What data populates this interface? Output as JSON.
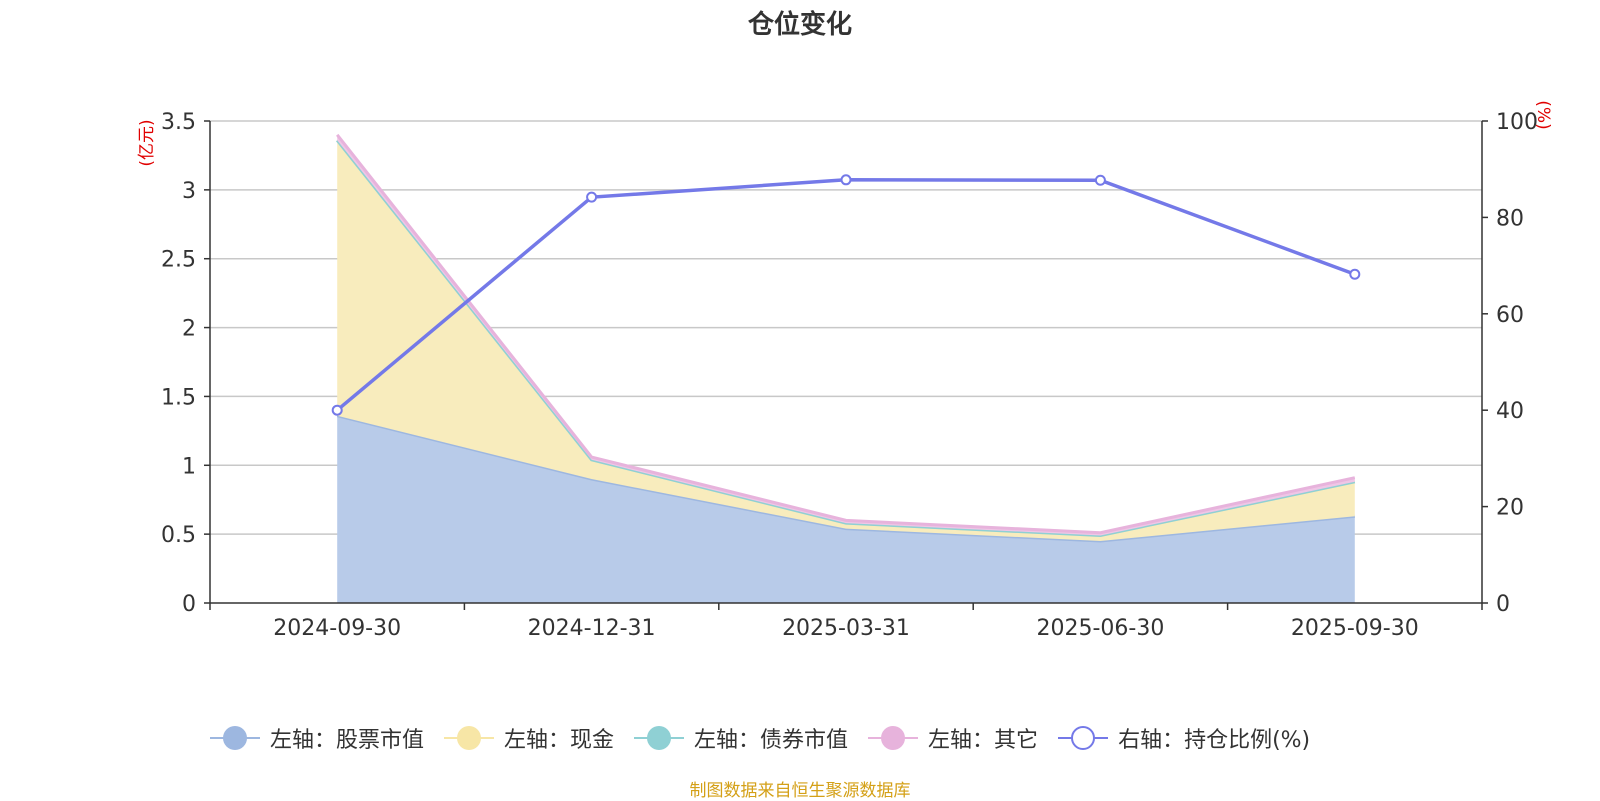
{
  "title": "仓位变化",
  "source_note": "制图数据来自恒生聚源数据库",
  "chart_data": {
    "type": "area",
    "categories": [
      "2024-09-30",
      "2024-12-31",
      "2025-03-31",
      "2025-06-30",
      "2025-09-30"
    ],
    "left_axis": {
      "unit_label": "(亿元)",
      "ylim": [
        0,
        3.5
      ],
      "ticks": [
        "0",
        "0.5",
        "1",
        "1.5",
        "2",
        "2.5",
        "3",
        "3.5"
      ]
    },
    "right_axis": {
      "unit_label": "(%)",
      "ylim": [
        0,
        100
      ],
      "ticks": [
        "0",
        "20",
        "40",
        "60",
        "80",
        "100"
      ]
    },
    "grid": true,
    "legend_position": "bottom",
    "series": [
      {
        "name": "左轴：股票市值",
        "axis": "left",
        "kind": "stacked-area",
        "color": "#9db7e0",
        "fill": "#b8cbe9",
        "values": [
          1.36,
          0.9,
          0.54,
          0.45,
          0.63
        ]
      },
      {
        "name": "左轴：现金",
        "axis": "left",
        "kind": "stacked-area",
        "color": "#f7e6a6",
        "fill": "#f8ecbd",
        "values": [
          2.0,
          0.14,
          0.04,
          0.04,
          0.25
        ]
      },
      {
        "name": "左轴：债券市值",
        "axis": "left",
        "kind": "stacked-area",
        "color": "#8fd0d4",
        "fill": "#a8dde0",
        "values": [
          0,
          0,
          0,
          0,
          0
        ]
      },
      {
        "name": "左轴：其它",
        "axis": "left",
        "kind": "stacked-area",
        "color": "#e7b3dc",
        "fill": "#efc6e6",
        "values": [
          0.04,
          0.02,
          0.02,
          0.02,
          0.03
        ]
      },
      {
        "name": "右轴：持仓比例(%)",
        "axis": "right",
        "kind": "line",
        "color": "#7479e8",
        "values": [
          40.0,
          84.2,
          87.8,
          87.7,
          68.2
        ]
      }
    ]
  }
}
